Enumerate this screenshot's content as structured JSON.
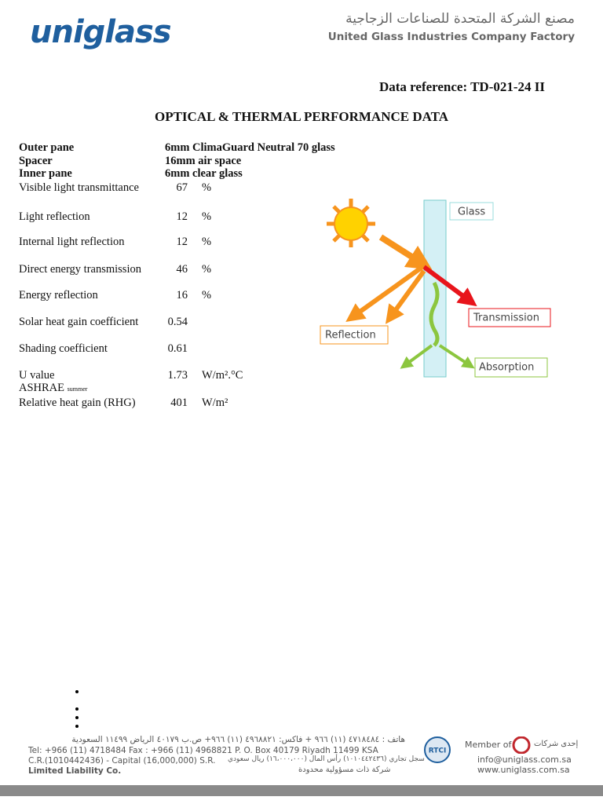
{
  "header": {
    "logo": "uniglass",
    "arabic_name": "مصنع الشركة المتحدة للصناعات الزجاجية",
    "english_name": "United Glass Industries Company Factory"
  },
  "reference": "Data reference: TD-021-24 II",
  "title": "OPTICAL & THERMAL PERFORMANCE DATA",
  "construction": [
    {
      "label": "Outer pane",
      "value": "6mm ClimaGuard Neutral 70 glass"
    },
    {
      "label": "Spacer",
      "value": "16mm air space"
    },
    {
      "label": "Inner pane",
      "value": "6mm clear glass"
    }
  ],
  "properties": [
    {
      "label": "Visible light transmittance",
      "value": 67,
      "unit": "%"
    },
    {
      "label": "Light reflection",
      "value": 12,
      "unit": "%"
    },
    {
      "label": "Internal light reflection",
      "value": 12,
      "unit": "%"
    },
    {
      "label": "Direct energy transmission",
      "value": 46,
      "unit": "%"
    },
    {
      "label": "Energy reflection",
      "value": 16,
      "unit": "%"
    },
    {
      "label": "Solar heat gain coefficient",
      "value": 0.54
    },
    {
      "label": "Shading coefficient",
      "value": 0.61
    },
    {
      "label": "U value",
      "value": 1.73,
      "unit": "W/m².°C"
    },
    {
      "label": "Relative heat gain (RHG)",
      "value": 401,
      "unit": "W/m²"
    }
  ],
  "ashrae": {
    "label": "ASHRAE",
    "note": "summer"
  },
  "diagram": {
    "glass": "Glass",
    "transmission": "Transmission",
    "reflection": "Reflection",
    "absorption": "Absorption"
  },
  "footer": {
    "arabic_contact": "هاتف : ٤٧١٨٤٨٤ (١١) ٩٦٦ + فاكس: ٤٩٦٨٨٢١ (١١) ٩٦٦+ ص.ب ٤٠١٧٩ الرياض ١١٤٩٩ السعودية",
    "contact": "Tel: +966 (11) 4718484  Fax : +966 (11) 4968821  P. O. Box 40179  Riyadh  11499 KSA",
    "registration": "C.R.(1010442436) - Capital (16,000,000) S.R.",
    "arabic_registration": "سجل تجاري (١٠١٠٤٤٢٤٣٦) رأس المال (١٦،٠٠٠،٠٠٠) ريال سعودي",
    "company_type": "Limited Liability Co.",
    "arabic_company_type": "شركة ذات مسؤولية محدودة",
    "badge": "RTCI",
    "member_of": "Member of",
    "arabic_member_of": "إحدى شركات",
    "email": "info@uniglass.com.sa",
    "website": "www.uniglass.com.sa"
  }
}
